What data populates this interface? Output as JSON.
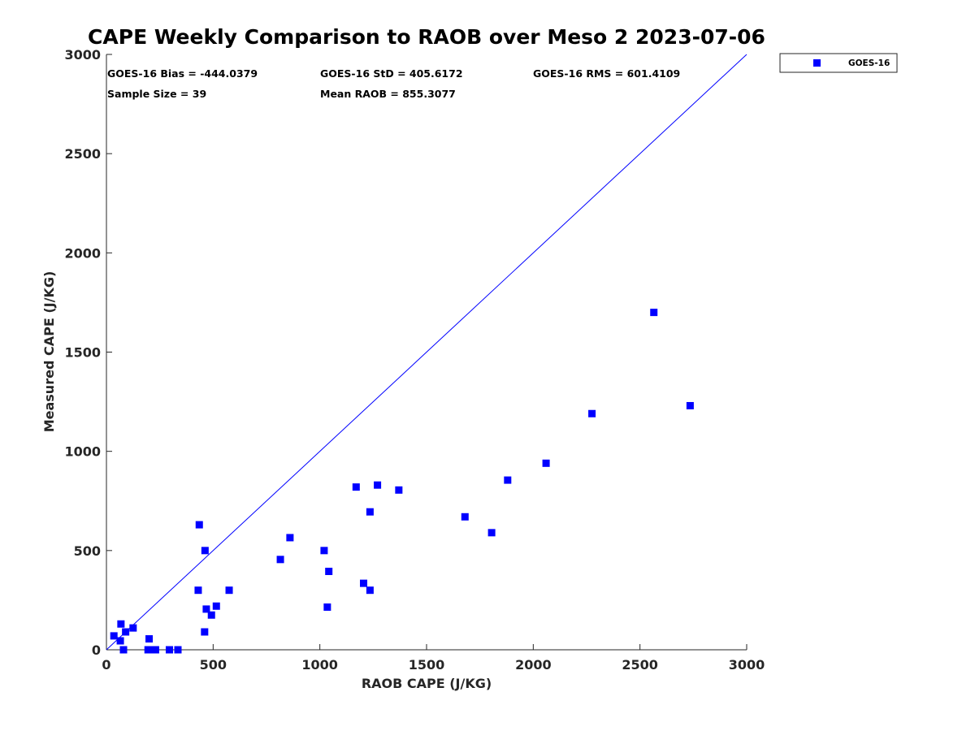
{
  "chart_data": {
    "type": "scatter",
    "title": "CAPE Weekly Comparison to RAOB over Meso 2 2023-07-06",
    "xlabel": "RAOB CAPE (J/KG)",
    "ylabel": "Measured CAPE (J/KG)",
    "xlim": [
      0,
      3000
    ],
    "ylim": [
      0,
      3000
    ],
    "xticks": [
      0,
      500,
      1000,
      1500,
      2000,
      2500,
      3000
    ],
    "yticks": [
      0,
      500,
      1000,
      1500,
      2000,
      2500,
      3000
    ],
    "grid": false,
    "legend_position": "top-right, outside plot",
    "reference_line": {
      "from": [
        0,
        0
      ],
      "to": [
        3000,
        3000
      ],
      "color": "#0000ff"
    },
    "stats": [
      {
        "label": "GOES-16 Bias = -444.0379"
      },
      {
        "label": "GOES-16 StD = 405.6172"
      },
      {
        "label": "GOES-16 RMS = 601.4109"
      },
      {
        "label": "Sample Size = 39"
      },
      {
        "label": "Mean RAOB = 855.3077"
      }
    ],
    "series": [
      {
        "name": "GOES-16",
        "color": "#0000ff",
        "marker": "square",
        "points": [
          [
            35,
            70
          ],
          [
            65,
            45
          ],
          [
            68,
            130
          ],
          [
            80,
            0
          ],
          [
            90,
            90
          ],
          [
            125,
            110
          ],
          [
            195,
            0
          ],
          [
            200,
            55
          ],
          [
            210,
            0
          ],
          [
            230,
            0
          ],
          [
            295,
            0
          ],
          [
            335,
            0
          ],
          [
            430,
            300
          ],
          [
            435,
            630
          ],
          [
            460,
            90
          ],
          [
            462,
            500
          ],
          [
            468,
            205
          ],
          [
            492,
            175
          ],
          [
            515,
            220
          ],
          [
            575,
            300
          ],
          [
            815,
            455
          ],
          [
            860,
            565
          ],
          [
            1020,
            500
          ],
          [
            1035,
            215
          ],
          [
            1042,
            395
          ],
          [
            1170,
            820
          ],
          [
            1205,
            335
          ],
          [
            1235,
            300
          ],
          [
            1235,
            695
          ],
          [
            1270,
            830
          ],
          [
            1370,
            805
          ],
          [
            1680,
            670
          ],
          [
            1805,
            590
          ],
          [
            1880,
            855
          ],
          [
            2060,
            940
          ],
          [
            2275,
            1190
          ],
          [
            2565,
            1700
          ],
          [
            2735,
            1230
          ]
        ]
      }
    ]
  }
}
